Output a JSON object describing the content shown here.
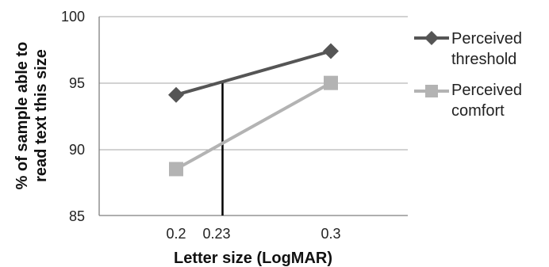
{
  "chart_data": {
    "type": "line",
    "x_ticks": [
      "0.2",
      "0.23",
      "0.3"
    ],
    "y_ticks": [
      "85",
      "90",
      "95",
      "100"
    ],
    "xlabel": "Letter size (LogMAR)",
    "ylabel_lines": [
      "% of sample able to",
      "read text this size"
    ],
    "ylim": [
      85,
      100
    ],
    "grid": "horizontal",
    "legend_placement": "right",
    "series": [
      {
        "name_lines": [
          "Perceived",
          "threshold"
        ],
        "marker": "diamond",
        "color": "#555555",
        "points": [
          [
            0.2,
            94.1
          ],
          [
            0.3,
            97.4
          ]
        ]
      },
      {
        "name_lines": [
          "Perceived",
          "comfort"
        ],
        "marker": "square",
        "color": "#b3b3b3",
        "points": [
          [
            0.2,
            88.5
          ],
          [
            0.3,
            95.0
          ]
        ]
      }
    ],
    "reference_line": {
      "x": 0.23,
      "y_top": 95.0,
      "color": "#000000"
    }
  }
}
